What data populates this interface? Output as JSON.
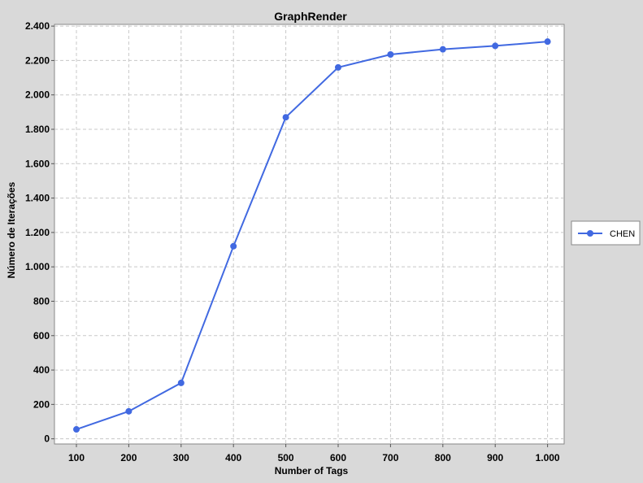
{
  "chart_data": {
    "type": "line",
    "title": "GraphRender",
    "xlabel": "Number of Tags",
    "ylabel": "Número de Iterações",
    "x": [
      100,
      200,
      300,
      400,
      500,
      600,
      700,
      800,
      900,
      1000
    ],
    "x_tick_labels": [
      "100",
      "200",
      "300",
      "400",
      "500",
      "600",
      "700",
      "800",
      "900",
      "1.000"
    ],
    "y_ticks": [
      0,
      200,
      400,
      600,
      800,
      1000,
      1200,
      1400,
      1600,
      1800,
      2000,
      2200,
      2400
    ],
    "y_tick_labels": [
      "0",
      "200",
      "400",
      "600",
      "800",
      "1.000",
      "1.200",
      "1.400",
      "1.600",
      "1.800",
      "2.000",
      "2.200",
      "2.400"
    ],
    "ylim": [
      -30,
      2410
    ],
    "grid": true,
    "legend_position": "right",
    "series": [
      {
        "name": "CHEN",
        "color": "#4169e1",
        "values": [
          55,
          160,
          325,
          1120,
          1870,
          2160,
          2235,
          2265,
          2285,
          2310
        ]
      }
    ]
  }
}
